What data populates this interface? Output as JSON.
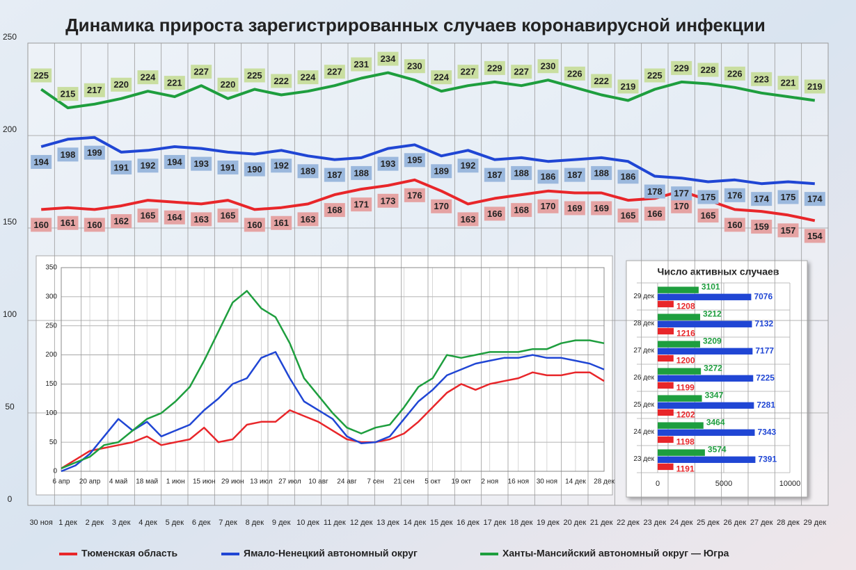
{
  "chart_data": [
    {
      "type": "line",
      "title": "Динамика прироста зарегистрированных случаев коронавирусной инфекции",
      "categories": [
        "30 ноя",
        "1 дек",
        "2 дек",
        "3 дек",
        "4 дек",
        "5 дек",
        "6 дек",
        "7 дек",
        "8 дек",
        "9 дек",
        "10 дек",
        "11 дек",
        "12 дек",
        "13 дек",
        "14 дек",
        "15 дек",
        "16 дек",
        "17 дек",
        "18 дек",
        "19 дек",
        "20 дек",
        "21 дек",
        "22 дек",
        "23 дек",
        "24 дек",
        "25 дек",
        "26 дек",
        "27 дек",
        "28 дек",
        "29 дек"
      ],
      "series": [
        {
          "name": "Тюменская область",
          "color": "#e8262a",
          "values": [
            160,
            161,
            160,
            162,
            165,
            164,
            163,
            165,
            160,
            161,
            163,
            168,
            171,
            173,
            176,
            170,
            163,
            166,
            168,
            170,
            169,
            169,
            165,
            166,
            170,
            165,
            160,
            159,
            157,
            154
          ]
        },
        {
          "name": "Ямало-Ненецкий автономный округ",
          "color": "#2046d4",
          "values": [
            194,
            198,
            199,
            191,
            192,
            194,
            193,
            191,
            190,
            192,
            189,
            187,
            188,
            193,
            195,
            189,
            192,
            187,
            188,
            186,
            187,
            188,
            186,
            178,
            177,
            175,
            176,
            174,
            175,
            174
          ]
        },
        {
          "name": "Ханты-Мансийский автономный округ — Югра",
          "color": "#1e9e3e",
          "values": [
            225,
            215,
            217,
            220,
            224,
            221,
            227,
            220,
            225,
            222,
            224,
            227,
            231,
            234,
            230,
            224,
            227,
            229,
            227,
            230,
            226,
            222,
            219,
            225,
            229,
            228,
            226,
            223,
            221,
            219
          ]
        }
      ],
      "ylim": [
        0,
        250
      ],
      "yticks": [
        0,
        50,
        100,
        150,
        200,
        250
      ],
      "grid": true,
      "data_labels": true,
      "legend": "bottom"
    },
    {
      "type": "line",
      "categories": [
        "6 апр",
        null,
        "20 апр",
        null,
        "4 май",
        null,
        "18 май",
        null,
        "1 июн",
        null,
        "15 июн",
        null,
        "29 июн",
        null,
        "13 июл",
        null,
        "27 июл",
        null,
        "10 авг",
        null,
        "24 авг",
        null,
        "7 сен",
        null,
        "21 сен",
        null,
        "5 окт",
        null,
        "19 окт",
        null,
        "2 ноя",
        null,
        "16 ноя",
        null,
        "30 ноя",
        null,
        "14 дек",
        null,
        "28 дек"
      ],
      "series": [
        {
          "color": "#e8262a",
          "values": [
            5,
            20,
            35,
            40,
            45,
            50,
            60,
            45,
            50,
            55,
            75,
            50,
            55,
            80,
            85,
            85,
            105,
            95,
            85,
            70,
            55,
            50,
            50,
            55,
            65,
            85,
            110,
            135,
            150,
            140,
            150,
            155,
            160,
            170,
            165,
            165,
            170,
            170,
            155
          ]
        },
        {
          "color": "#2046d4",
          "values": [
            0,
            10,
            30,
            60,
            90,
            70,
            85,
            60,
            70,
            80,
            105,
            125,
            150,
            160,
            195,
            205,
            160,
            120,
            105,
            90,
            60,
            48,
            50,
            60,
            90,
            120,
            140,
            165,
            175,
            185,
            190,
            195,
            195,
            200,
            195,
            195,
            190,
            185,
            175
          ]
        },
        {
          "color": "#1e9e3e",
          "values": [
            5,
            15,
            25,
            45,
            50,
            70,
            90,
            100,
            120,
            145,
            190,
            240,
            290,
            310,
            280,
            265,
            220,
            160,
            130,
            100,
            75,
            65,
            75,
            80,
            110,
            145,
            160,
            200,
            195,
            200,
            205,
            205,
            205,
            210,
            210,
            220,
            225,
            225,
            220
          ]
        }
      ],
      "ylim": [
        0,
        350
      ],
      "yticks": [
        0,
        50,
        100,
        150,
        200,
        250,
        300,
        350
      ],
      "grid": true
    },
    {
      "type": "bar",
      "orientation": "horizontal",
      "title": "Число активных случаев",
      "categories": [
        "29 дек",
        "28 дек",
        "27 дек",
        "26 дек",
        "25 дек",
        "24 дек",
        "23 дек"
      ],
      "series": [
        {
          "color": "#1e9e3e",
          "values": [
            3101,
            3212,
            3209,
            3272,
            3347,
            3464,
            3574
          ]
        },
        {
          "color": "#2046d4",
          "values": [
            7076,
            7132,
            7177,
            7225,
            7281,
            7343,
            7391
          ]
        },
        {
          "color": "#e8262a",
          "values": [
            1208,
            1216,
            1200,
            1199,
            1202,
            1198,
            1191
          ]
        }
      ],
      "xlim": [
        0,
        10000
      ],
      "xticks": [
        0,
        5000,
        10000
      ],
      "grid": true
    }
  ]
}
